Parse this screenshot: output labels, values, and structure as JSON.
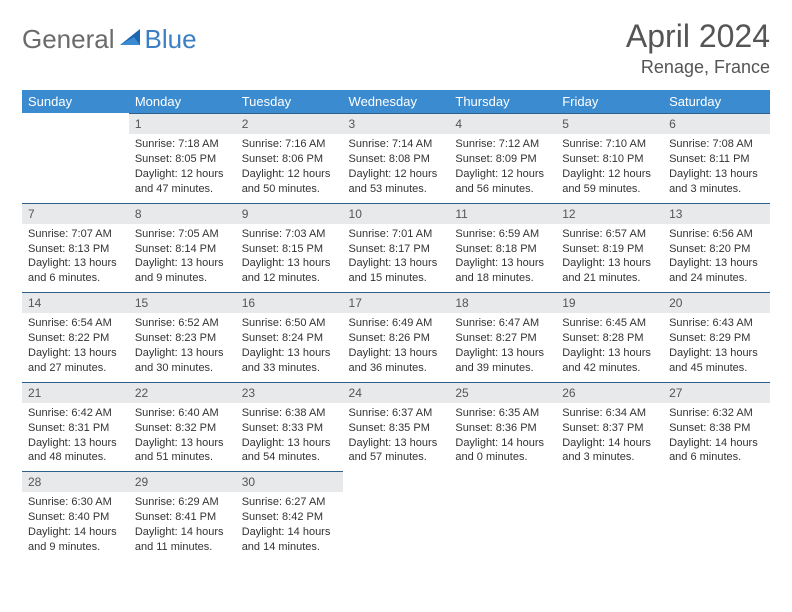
{
  "brand": {
    "part1": "General",
    "part2": "Blue"
  },
  "title": "April 2024",
  "location": "Renage, France",
  "colors": {
    "header_bg": "#3b8bd1",
    "header_text": "#ffffff",
    "daynum_bg": "#e7e9eb",
    "rule": "#2e5f8a",
    "brand_gray": "#6b6b6b",
    "brand_blue": "#3b7fc4"
  },
  "weekdays": [
    "Sunday",
    "Monday",
    "Tuesday",
    "Wednesday",
    "Thursday",
    "Friday",
    "Saturday"
  ],
  "weeks": [
    [
      null,
      {
        "n": "1",
        "sr": "Sunrise: 7:18 AM",
        "ss": "Sunset: 8:05 PM",
        "dl": "Daylight: 12 hours and 47 minutes."
      },
      {
        "n": "2",
        "sr": "Sunrise: 7:16 AM",
        "ss": "Sunset: 8:06 PM",
        "dl": "Daylight: 12 hours and 50 minutes."
      },
      {
        "n": "3",
        "sr": "Sunrise: 7:14 AM",
        "ss": "Sunset: 8:08 PM",
        "dl": "Daylight: 12 hours and 53 minutes."
      },
      {
        "n": "4",
        "sr": "Sunrise: 7:12 AM",
        "ss": "Sunset: 8:09 PM",
        "dl": "Daylight: 12 hours and 56 minutes."
      },
      {
        "n": "5",
        "sr": "Sunrise: 7:10 AM",
        "ss": "Sunset: 8:10 PM",
        "dl": "Daylight: 12 hours and 59 minutes."
      },
      {
        "n": "6",
        "sr": "Sunrise: 7:08 AM",
        "ss": "Sunset: 8:11 PM",
        "dl": "Daylight: 13 hours and 3 minutes."
      }
    ],
    [
      {
        "n": "7",
        "sr": "Sunrise: 7:07 AM",
        "ss": "Sunset: 8:13 PM",
        "dl": "Daylight: 13 hours and 6 minutes."
      },
      {
        "n": "8",
        "sr": "Sunrise: 7:05 AM",
        "ss": "Sunset: 8:14 PM",
        "dl": "Daylight: 13 hours and 9 minutes."
      },
      {
        "n": "9",
        "sr": "Sunrise: 7:03 AM",
        "ss": "Sunset: 8:15 PM",
        "dl": "Daylight: 13 hours and 12 minutes."
      },
      {
        "n": "10",
        "sr": "Sunrise: 7:01 AM",
        "ss": "Sunset: 8:17 PM",
        "dl": "Daylight: 13 hours and 15 minutes."
      },
      {
        "n": "11",
        "sr": "Sunrise: 6:59 AM",
        "ss": "Sunset: 8:18 PM",
        "dl": "Daylight: 13 hours and 18 minutes."
      },
      {
        "n": "12",
        "sr": "Sunrise: 6:57 AM",
        "ss": "Sunset: 8:19 PM",
        "dl": "Daylight: 13 hours and 21 minutes."
      },
      {
        "n": "13",
        "sr": "Sunrise: 6:56 AM",
        "ss": "Sunset: 8:20 PM",
        "dl": "Daylight: 13 hours and 24 minutes."
      }
    ],
    [
      {
        "n": "14",
        "sr": "Sunrise: 6:54 AM",
        "ss": "Sunset: 8:22 PM",
        "dl": "Daylight: 13 hours and 27 minutes."
      },
      {
        "n": "15",
        "sr": "Sunrise: 6:52 AM",
        "ss": "Sunset: 8:23 PM",
        "dl": "Daylight: 13 hours and 30 minutes."
      },
      {
        "n": "16",
        "sr": "Sunrise: 6:50 AM",
        "ss": "Sunset: 8:24 PM",
        "dl": "Daylight: 13 hours and 33 minutes."
      },
      {
        "n": "17",
        "sr": "Sunrise: 6:49 AM",
        "ss": "Sunset: 8:26 PM",
        "dl": "Daylight: 13 hours and 36 minutes."
      },
      {
        "n": "18",
        "sr": "Sunrise: 6:47 AM",
        "ss": "Sunset: 8:27 PM",
        "dl": "Daylight: 13 hours and 39 minutes."
      },
      {
        "n": "19",
        "sr": "Sunrise: 6:45 AM",
        "ss": "Sunset: 8:28 PM",
        "dl": "Daylight: 13 hours and 42 minutes."
      },
      {
        "n": "20",
        "sr": "Sunrise: 6:43 AM",
        "ss": "Sunset: 8:29 PM",
        "dl": "Daylight: 13 hours and 45 minutes."
      }
    ],
    [
      {
        "n": "21",
        "sr": "Sunrise: 6:42 AM",
        "ss": "Sunset: 8:31 PM",
        "dl": "Daylight: 13 hours and 48 minutes."
      },
      {
        "n": "22",
        "sr": "Sunrise: 6:40 AM",
        "ss": "Sunset: 8:32 PM",
        "dl": "Daylight: 13 hours and 51 minutes."
      },
      {
        "n": "23",
        "sr": "Sunrise: 6:38 AM",
        "ss": "Sunset: 8:33 PM",
        "dl": "Daylight: 13 hours and 54 minutes."
      },
      {
        "n": "24",
        "sr": "Sunrise: 6:37 AM",
        "ss": "Sunset: 8:35 PM",
        "dl": "Daylight: 13 hours and 57 minutes."
      },
      {
        "n": "25",
        "sr": "Sunrise: 6:35 AM",
        "ss": "Sunset: 8:36 PM",
        "dl": "Daylight: 14 hours and 0 minutes."
      },
      {
        "n": "26",
        "sr": "Sunrise: 6:34 AM",
        "ss": "Sunset: 8:37 PM",
        "dl": "Daylight: 14 hours and 3 minutes."
      },
      {
        "n": "27",
        "sr": "Sunrise: 6:32 AM",
        "ss": "Sunset: 8:38 PM",
        "dl": "Daylight: 14 hours and 6 minutes."
      }
    ],
    [
      {
        "n": "28",
        "sr": "Sunrise: 6:30 AM",
        "ss": "Sunset: 8:40 PM",
        "dl": "Daylight: 14 hours and 9 minutes."
      },
      {
        "n": "29",
        "sr": "Sunrise: 6:29 AM",
        "ss": "Sunset: 8:41 PM",
        "dl": "Daylight: 14 hours and 11 minutes."
      },
      {
        "n": "30",
        "sr": "Sunrise: 6:27 AM",
        "ss": "Sunset: 8:42 PM",
        "dl": "Daylight: 14 hours and 14 minutes."
      },
      null,
      null,
      null,
      null
    ]
  ]
}
